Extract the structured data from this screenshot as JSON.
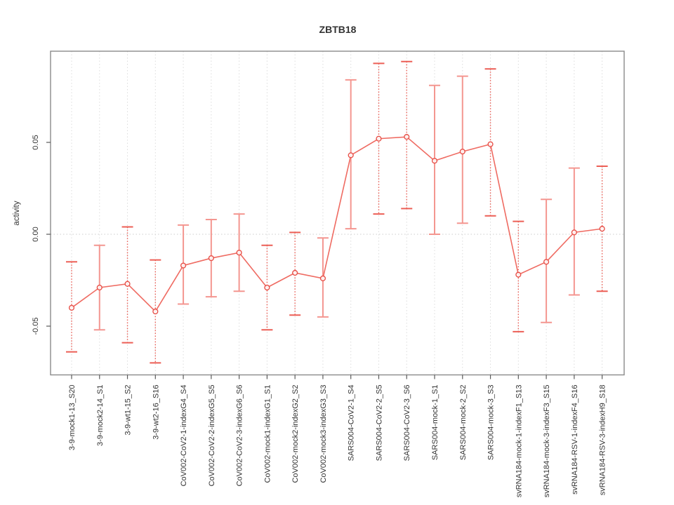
{
  "figure": {
    "title": "ZBTB18",
    "ylabel": "activity"
  },
  "chart_data": {
    "type": "line",
    "subtype": "points-with-error-bars",
    "title": "ZBTB18",
    "xlabel": "",
    "ylabel": "activity",
    "legend": "none",
    "grid": {
      "vertical_dotted_per_category": true,
      "horizontal_zero_dotted": true
    },
    "marker": "open-circle",
    "ylim": [
      -0.0765,
      0.0995
    ],
    "yticks": [
      -0.05,
      0.0,
      0.05
    ],
    "ytick_labels": [
      "-0.05",
      "0.00",
      "0.05"
    ],
    "categories": [
      "3-9-mock1-13_S20",
      "3-9-mock2-14_S1",
      "3-9-wt1-15_S2",
      "3-9-wt2-16_S16",
      "CoV002-CoV2-1-indexG4_S4",
      "CoV002-CoV2-2-indexG5_S5",
      "CoV002-CoV2-3-indexG6_S6",
      "CoV002-mock1-indexG1_S1",
      "CoV002-mock2-indexG2_S2",
      "CoV002-mock3-indexG3_S3",
      "SARS004-CoV2-1_S4",
      "SARS004-CoV2-2_S5",
      "SARS004-CoV2-3_S6",
      "SARS004-mock-1_S1",
      "SARS004-mock-2_S2",
      "SARS004-mock-3_S3",
      "svRNA184-mock-1-indexF1_S13",
      "svRNA184-mock-3-indexF3_S15",
      "svRNA184-RSV-1-indexF4_S16",
      "svRNA184-RSV-3-indexH9_S18"
    ],
    "series": [
      {
        "name": "activity",
        "values": [
          -0.04,
          -0.029,
          -0.027,
          -0.042,
          -0.017,
          -0.013,
          -0.01,
          -0.029,
          -0.021,
          -0.024,
          0.043,
          0.052,
          0.053,
          0.04,
          0.045,
          0.049,
          -0.022,
          -0.015,
          0.001,
          0.003
        ],
        "error_low": [
          -0.064,
          -0.052,
          -0.059,
          -0.07,
          -0.038,
          -0.034,
          -0.031,
          -0.052,
          -0.044,
          -0.045,
          0.003,
          0.011,
          0.014,
          0.0,
          0.006,
          0.01,
          -0.053,
          -0.048,
          -0.033,
          -0.031
        ],
        "error_high": [
          -0.015,
          -0.006,
          0.004,
          -0.014,
          0.005,
          0.008,
          0.011,
          -0.006,
          0.001,
          -0.002,
          0.084,
          0.093,
          0.094,
          0.081,
          0.086,
          0.09,
          0.007,
          0.019,
          0.036,
          0.037
        ],
        "bar_styles": [
          "dotted",
          "solid",
          "dotted",
          "dotted",
          "solid",
          "solid",
          "solid",
          "dotted",
          "dotted",
          "solid",
          "solid",
          "dotted",
          "dotted",
          "solid",
          "solid",
          "dotted",
          "dotted",
          "solid",
          "solid",
          "dotted"
        ]
      }
    ],
    "colors": {
      "point": "#e8524a",
      "line": "#ef6b62",
      "solid_bar": "#f49690",
      "dotted_bar": "#ec5f56",
      "grid": "#dcdcdc",
      "zero_line": "#cccccc",
      "axis_box": "#8a8a8a",
      "tick": "#5a5a5a",
      "text": "#333333"
    }
  }
}
